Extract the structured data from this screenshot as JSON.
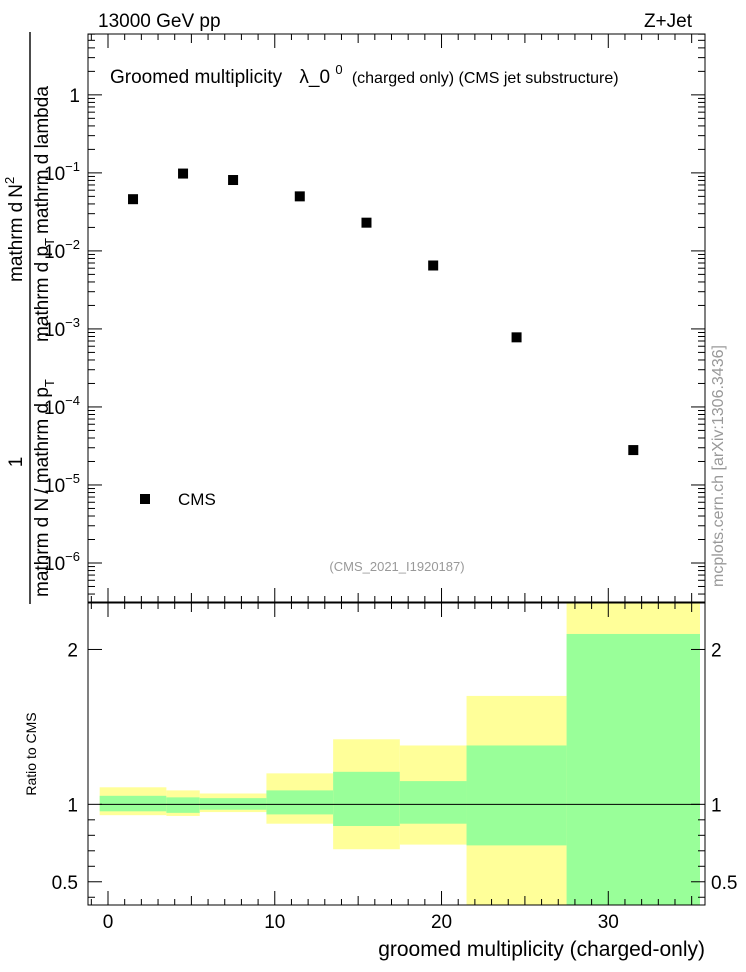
{
  "header": {
    "left": "13000 GeV pp",
    "right": "Z+Jet"
  },
  "colors": {
    "marker": "#000000",
    "band_outer": "#ffff99",
    "band_inner": "#99ff99",
    "watermark": "#999999",
    "axis": "#000000"
  },
  "chart_data": [
    {
      "type": "scatter",
      "title": "Groomed multiplicity",
      "title_symbol": "λ_0",
      "title_sup": "0",
      "title_suffix": "(charged only) (CMS jet substructure)",
      "ylabel": {
        "numerator": "1",
        "denominator_1": "mathrm d N",
        "denominator_2": "/ mathrm d p",
        "denominator_sub": "T",
        "right_1": "mathrm d",
        "right_2": "N",
        "right_sup": "2",
        "right_3": "mathrm d p",
        "right_sub": "T",
        "right_4": "mathrm d lambda"
      },
      "yscale": "log",
      "ylim_log10": [
        -6.5,
        0.78
      ],
      "xlim": [
        -1.2,
        35.8
      ],
      "ytick_labels": [
        {
          "base": "1",
          "exp": ""
        },
        {
          "base": "10",
          "exp": "−1"
        },
        {
          "base": "10",
          "exp": "−2"
        },
        {
          "base": "10",
          "exp": "−3"
        },
        {
          "base": "10",
          "exp": "−4"
        },
        {
          "base": "10",
          "exp": "−5"
        },
        {
          "base": "10",
          "exp": "−6"
        }
      ],
      "ytick_values_log10": [
        0,
        -1,
        -2,
        -3,
        -4,
        -5,
        -6
      ],
      "series": [
        {
          "name": "CMS",
          "x": [
            1.5,
            4.5,
            7.5,
            11.5,
            15.5,
            19.5,
            24.5,
            31.5
          ],
          "y": [
            0.046,
            0.098,
            0.081,
            0.05,
            0.023,
            0.0065,
            0.00078,
            2.8e-05
          ]
        }
      ],
      "legend": {
        "label": "CMS",
        "position": "bottom-left"
      },
      "analysis_tag": "(CMS_2021_I1920187)"
    },
    {
      "type": "area",
      "ylabel": "Ratio to CMS",
      "xlabel": "groomed multiplicity (charged-only)",
      "ylim": [
        0.35,
        2.3
      ],
      "xlim": [
        -1.2,
        35.8
      ],
      "xtick_values": [
        0,
        10,
        20,
        30
      ],
      "xtick_labels": [
        "0",
        "10",
        "20",
        "30"
      ],
      "ytick_values": [
        0.5,
        1,
        2
      ],
      "ytick_labels": [
        "0.5",
        "1",
        "2"
      ],
      "reference_line": 1,
      "bins": [
        {
          "lo": -0.5,
          "hi": 3.5,
          "inner": [
            0.955,
            1.055
          ],
          "outer": [
            0.93,
            1.11
          ]
        },
        {
          "lo": 3.5,
          "hi": 5.5,
          "inner": [
            0.945,
            1.045
          ],
          "outer": [
            0.925,
            1.09
          ]
        },
        {
          "lo": 5.5,
          "hi": 9.5,
          "inner": [
            0.965,
            1.04
          ],
          "outer": [
            0.95,
            1.07
          ]
        },
        {
          "lo": 9.5,
          "hi": 13.5,
          "inner": [
            0.935,
            1.09
          ],
          "outer": [
            0.875,
            1.2
          ]
        },
        {
          "lo": 13.5,
          "hi": 17.5,
          "inner": [
            0.86,
            1.21
          ],
          "outer": [
            0.71,
            1.42
          ]
        },
        {
          "lo": 17.5,
          "hi": 21.5,
          "inner": [
            0.875,
            1.15
          ],
          "outer": [
            0.74,
            1.38
          ]
        },
        {
          "lo": 21.5,
          "hi": 27.5,
          "inner": [
            0.735,
            1.38
          ],
          "outer": [
            0.35,
            1.7
          ]
        },
        {
          "lo": 27.5,
          "hi": 35.5,
          "inner": [
            0.35,
            2.1
          ],
          "outer": [
            0.35,
            2.3
          ]
        }
      ]
    }
  ],
  "watermark": "mcplots.cern.ch [arXiv:1306.3436]"
}
